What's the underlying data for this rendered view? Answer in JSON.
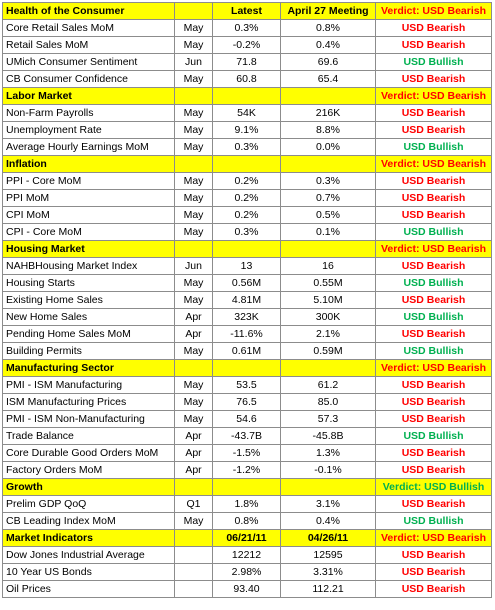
{
  "colors": {
    "header_bg": "#ffff00",
    "bearish": "#ff0000",
    "bullish": "#00b050"
  },
  "header": {
    "latest": "Latest",
    "meeting": "April 27 Meeting"
  },
  "sections": [
    {
      "title": "Health of the Consumer",
      "verdict": "Verdict: USD Bearish",
      "verdict_color": "red",
      "rows": [
        {
          "name": "Core Retail Sales MoM",
          "month": "May",
          "latest": "0.3%",
          "prior": "0.8%",
          "signal": "USD Bearish",
          "color": "red"
        },
        {
          "name": "Retail Sales MoM",
          "month": "May",
          "latest": "-0.2%",
          "prior": "0.4%",
          "signal": "USD Bearish",
          "color": "red"
        },
        {
          "name": "UMich Consumer Sentiment",
          "month": "Jun",
          "latest": "71.8",
          "prior": "69.6",
          "signal": "USD Bullish",
          "color": "green"
        },
        {
          "name": "CB Consumer Confidence",
          "month": "May",
          "latest": "60.8",
          "prior": "65.4",
          "signal": "USD Bearish",
          "color": "red"
        }
      ]
    },
    {
      "title": "Labor Market",
      "verdict": "Verdict: USD Bearish",
      "verdict_color": "red",
      "rows": [
        {
          "name": "Non-Farm Payrolls",
          "month": "May",
          "latest": "54K",
          "prior": "216K",
          "signal": "USD Bearish",
          "color": "red"
        },
        {
          "name": "Unemployment Rate",
          "month": "May",
          "latest": "9.1%",
          "prior": "8.8%",
          "signal": "USD Bearish",
          "color": "red"
        },
        {
          "name": "Average Hourly Earnings MoM",
          "month": "May",
          "latest": "0.3%",
          "prior": "0.0%",
          "signal": "USD Bullish",
          "color": "green"
        }
      ]
    },
    {
      "title": "Inflation",
      "verdict": "Verdict: USD Bearish",
      "verdict_color": "red",
      "rows": [
        {
          "name": "PPI - Core MoM",
          "month": "May",
          "latest": "0.2%",
          "prior": "0.3%",
          "signal": "USD Bearish",
          "color": "red"
        },
        {
          "name": "PPI MoM",
          "month": "May",
          "latest": "0.2%",
          "prior": "0.7%",
          "signal": "USD Bearish",
          "color": "red"
        },
        {
          "name": "CPI MoM",
          "month": "May",
          "latest": "0.2%",
          "prior": "0.5%",
          "signal": "USD Bearish",
          "color": "red"
        },
        {
          "name": "CPI - Core MoM",
          "month": "May",
          "latest": "0.3%",
          "prior": "0.1%",
          "signal": "USD Bullish",
          "color": "green"
        }
      ]
    },
    {
      "title": "Housing Market",
      "verdict": "Verdict: USD Bearish",
      "verdict_color": "red",
      "rows": [
        {
          "name": "NAHBHousing Market Index",
          "month": "Jun",
          "latest": "13",
          "prior": "16",
          "signal": "USD Bearish",
          "color": "red"
        },
        {
          "name": "Housing Starts",
          "month": "May",
          "latest": "0.56M",
          "prior": "0.55M",
          "signal": "USD Bullish",
          "color": "green"
        },
        {
          "name": "Existing Home Sales",
          "month": "May",
          "latest": "4.81M",
          "prior": "5.10M",
          "signal": "USD Bearish",
          "color": "red"
        },
        {
          "name": "New Home Sales",
          "month": "Apr",
          "latest": "323K",
          "prior": "300K",
          "signal": "USD Bullish",
          "color": "green"
        },
        {
          "name": "Pending Home Sales MoM",
          "month": "Apr",
          "latest": "-11.6%",
          "prior": "2.1%",
          "signal": "USD Bearish",
          "color": "red"
        },
        {
          "name": "Building Permits",
          "month": "May",
          "latest": "0.61M",
          "prior": "0.59M",
          "signal": "USD Bullish",
          "color": "green"
        }
      ]
    },
    {
      "title": "Manufacturing Sector",
      "verdict": "Verdict: USD Bearish",
      "verdict_color": "red",
      "rows": [
        {
          "name": "PMI - ISM Manufacturing",
          "month": "May",
          "latest": "53.5",
          "prior": "61.2",
          "signal": "USD Bearish",
          "color": "red"
        },
        {
          "name": "ISM Manufacturing Prices",
          "month": "May",
          "latest": "76.5",
          "prior": "85.0",
          "signal": "USD Bearish",
          "color": "red"
        },
        {
          "name": "PMI - ISM Non-Manufacturing",
          "month": "May",
          "latest": "54.6",
          "prior": "57.3",
          "signal": "USD Bearish",
          "color": "red"
        },
        {
          "name": "Trade Balance",
          "month": "Apr",
          "latest": "-43.7B",
          "prior": "-45.8B",
          "signal": "USD Bullish",
          "color": "green"
        },
        {
          "name": "Core Durable Good Orders MoM",
          "month": "Apr",
          "latest": "-1.5%",
          "prior": "1.3%",
          "signal": "USD Bearish",
          "color": "red"
        },
        {
          "name": "Factory Orders MoM",
          "month": "Apr",
          "latest": "-1.2%",
          "prior": "-0.1%",
          "signal": "USD Bearish",
          "color": "red"
        }
      ]
    },
    {
      "title": "Growth",
      "verdict": "Verdict: USD Bullish",
      "verdict_color": "green",
      "rows": [
        {
          "name": "Prelim GDP QoQ",
          "month": "Q1",
          "latest": "1.8%",
          "prior": "3.1%",
          "signal": "USD Bearish",
          "color": "red"
        },
        {
          "name": "CB Leading Index MoM",
          "month": "May",
          "latest": "0.8%",
          "prior": "0.4%",
          "signal": "USD Bullish",
          "color": "green"
        }
      ]
    },
    {
      "title": "Market Indicators",
      "col_latest": "06/21/11",
      "col_prior": "04/26/11",
      "verdict": "Verdict: USD Bearish",
      "verdict_color": "red",
      "rows": [
        {
          "name": "Dow Jones Industrial Average",
          "month": "",
          "latest": "12212",
          "prior": "12595",
          "signal": "USD Bearish",
          "color": "red"
        },
        {
          "name": "10 Year US Bonds",
          "month": "",
          "latest": "2.98%",
          "prior": "3.31%",
          "signal": "USD Bearish",
          "color": "red"
        },
        {
          "name": "Oil Prices",
          "month": "",
          "latest": "93.40",
          "prior": "112.21",
          "signal": "USD Bearish",
          "color": "red"
        }
      ]
    }
  ]
}
